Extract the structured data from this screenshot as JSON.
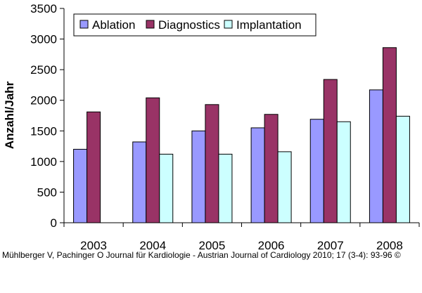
{
  "chart_data": {
    "type": "bar",
    "categories": [
      "2003",
      "2004",
      "2005",
      "2006",
      "2007",
      "2008"
    ],
    "series": [
      {
        "name": "Ablation",
        "color": "#9999ff",
        "values": [
          1200,
          1320,
          1500,
          1550,
          1690,
          2170
        ]
      },
      {
        "name": "Diagnostics",
        "color": "#993366",
        "values": [
          1810,
          2040,
          1930,
          1770,
          2340,
          2860
        ]
      },
      {
        "name": "Implantation",
        "color": "#ccffff",
        "values": [
          null,
          1120,
          1120,
          1160,
          1650,
          1740
        ]
      }
    ],
    "ylabel": "Anzahl/Jahr",
    "xlabel": "",
    "ylim": [
      0,
      3500
    ],
    "yticks": [
      0,
      500,
      1000,
      1500,
      2000,
      2500,
      3000,
      3500
    ],
    "grid": false,
    "legend": "top inside"
  },
  "citation": "Mühlberger V, Pachinger O Journal für Kardiologie - Austrian Journal of Cardiology 2010; 17 (3-4): 93-96 ©"
}
